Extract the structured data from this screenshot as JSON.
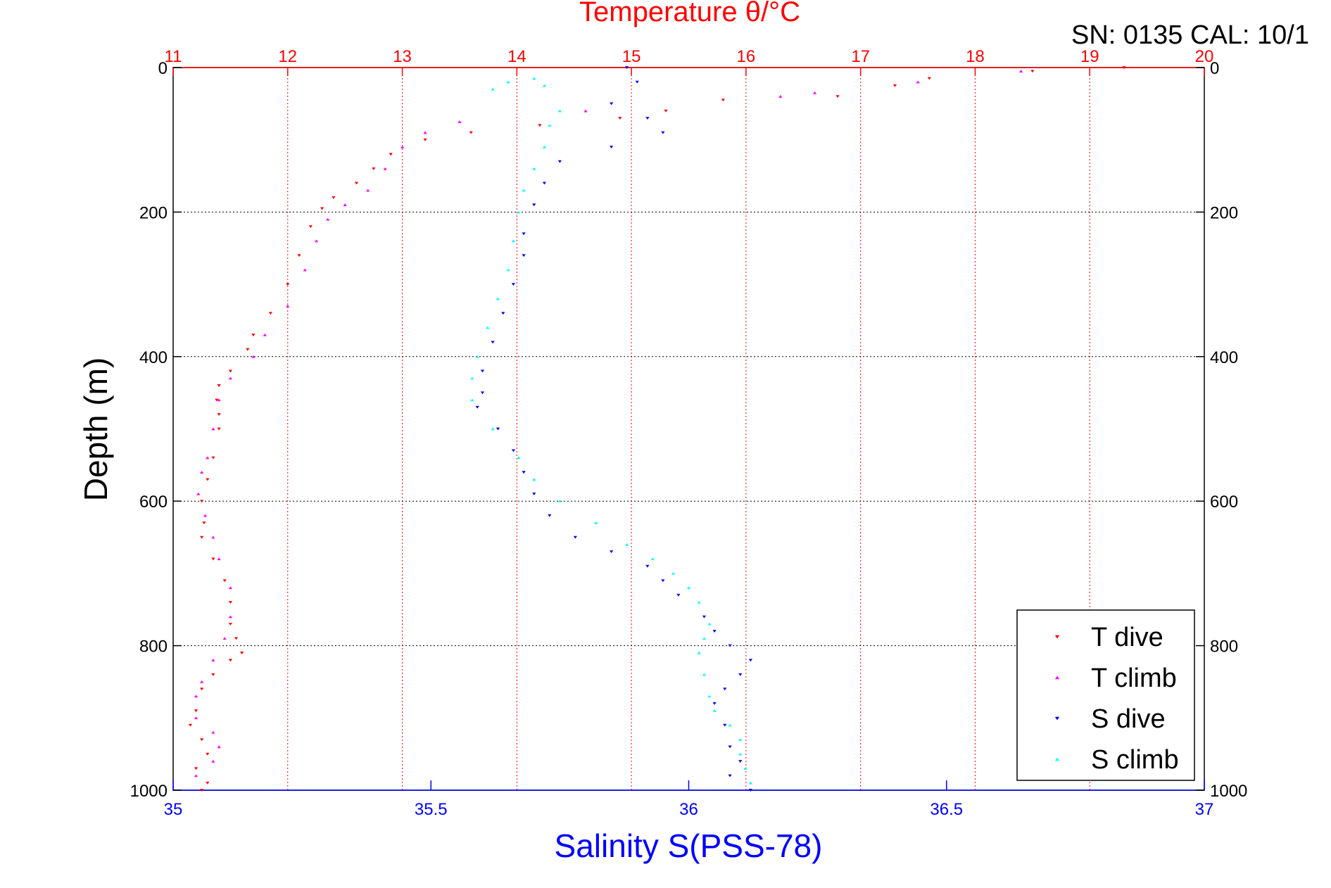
{
  "header": {
    "title": "Temperature θ/°C",
    "serial": "SN: 0135  CAL: 10/1"
  },
  "colors": {
    "t_dive": "#ff0000",
    "t_climb": "#ff00ff",
    "s_dive": "#0000ff",
    "s_climb": "#00ffff",
    "temp_axis": "#ff0000",
    "sal_axis": "#0000ff",
    "grid": "#000000"
  },
  "chart_data": {
    "type": "scatter",
    "title": "Temperature θ/°C",
    "xlabel": "Salinity S(PSS-78)",
    "x2label": "Temperature θ/°C",
    "ylabel": "Depth (m)",
    "x_sal_lim": [
      35,
      37
    ],
    "x_temp_lim": [
      11,
      20
    ],
    "ylim": [
      0,
      1000
    ],
    "y_reversed": true,
    "grid": true,
    "legend_position": "bottom-right",
    "x_sal_ticks": [
      "35",
      "35.5",
      "36",
      "36.5",
      "37"
    ],
    "x_temp_ticks": [
      "11",
      "12",
      "13",
      "14",
      "15",
      "16",
      "17",
      "18",
      "19",
      "20"
    ],
    "y_ticks": [
      "0",
      "200",
      "400",
      "600",
      "800",
      "1000"
    ],
    "legend": [
      "T dive",
      "T climb",
      "S dive",
      "S climb"
    ],
    "series": [
      {
        "name": "T dive",
        "axis": "temperature",
        "marker": "triangle-down",
        "points": [
          [
            19.3,
            0
          ],
          [
            18.5,
            5
          ],
          [
            17.6,
            15
          ],
          [
            17.3,
            25
          ],
          [
            16.8,
            40
          ],
          [
            15.8,
            45
          ],
          [
            15.3,
            60
          ],
          [
            14.9,
            70
          ],
          [
            14.2,
            80
          ],
          [
            13.6,
            90
          ],
          [
            13.2,
            100
          ],
          [
            12.9,
            120
          ],
          [
            12.75,
            140
          ],
          [
            12.6,
            160
          ],
          [
            12.4,
            180
          ],
          [
            12.3,
            195
          ],
          [
            12.2,
            220
          ],
          [
            12.1,
            260
          ],
          [
            12.0,
            300
          ],
          [
            11.85,
            340
          ],
          [
            11.7,
            370
          ],
          [
            11.65,
            390
          ],
          [
            11.5,
            420
          ],
          [
            11.4,
            440
          ],
          [
            11.38,
            460
          ],
          [
            11.4,
            480
          ],
          [
            11.4,
            500
          ],
          [
            11.35,
            540
          ],
          [
            11.3,
            570
          ],
          [
            11.25,
            600
          ],
          [
            11.27,
            630
          ],
          [
            11.25,
            650
          ],
          [
            11.35,
            680
          ],
          [
            11.45,
            710
          ],
          [
            11.5,
            740
          ],
          [
            11.5,
            770
          ],
          [
            11.55,
            790
          ],
          [
            11.6,
            810
          ],
          [
            11.5,
            820
          ],
          [
            11.35,
            840
          ],
          [
            11.25,
            860
          ],
          [
            11.2,
            890
          ],
          [
            11.15,
            910
          ],
          [
            11.25,
            930
          ],
          [
            11.3,
            950
          ],
          [
            11.2,
            970
          ],
          [
            11.3,
            990
          ],
          [
            11.25,
            1000
          ]
        ]
      },
      {
        "name": "T climb",
        "axis": "temperature",
        "marker": "triangle-up",
        "points": [
          [
            18.4,
            5
          ],
          [
            17.5,
            20
          ],
          [
            16.6,
            35
          ],
          [
            16.3,
            40
          ],
          [
            14.6,
            60
          ],
          [
            13.5,
            75
          ],
          [
            13.2,
            90
          ],
          [
            13.0,
            110
          ],
          [
            12.85,
            140
          ],
          [
            12.7,
            170
          ],
          [
            12.5,
            190
          ],
          [
            12.35,
            210
          ],
          [
            12.25,
            240
          ],
          [
            12.15,
            280
          ],
          [
            12.0,
            330
          ],
          [
            11.8,
            370
          ],
          [
            11.7,
            400
          ],
          [
            11.5,
            430
          ],
          [
            11.4,
            460
          ],
          [
            11.35,
            500
          ],
          [
            11.3,
            540
          ],
          [
            11.25,
            560
          ],
          [
            11.22,
            590
          ],
          [
            11.28,
            620
          ],
          [
            11.35,
            650
          ],
          [
            11.4,
            680
          ],
          [
            11.5,
            720
          ],
          [
            11.5,
            760
          ],
          [
            11.45,
            790
          ],
          [
            11.35,
            820
          ],
          [
            11.25,
            850
          ],
          [
            11.2,
            870
          ],
          [
            11.2,
            900
          ],
          [
            11.35,
            920
          ],
          [
            11.4,
            940
          ],
          [
            11.35,
            960
          ],
          [
            11.2,
            980
          ]
        ]
      },
      {
        "name": "S dive",
        "axis": "salinity",
        "marker": "triangle-down",
        "points": [
          [
            35.88,
            0
          ],
          [
            35.9,
            20
          ],
          [
            35.85,
            50
          ],
          [
            35.92,
            70
          ],
          [
            35.95,
            90
          ],
          [
            35.85,
            110
          ],
          [
            35.75,
            130
          ],
          [
            35.72,
            160
          ],
          [
            35.7,
            190
          ],
          [
            35.68,
            230
          ],
          [
            35.68,
            260
          ],
          [
            35.66,
            300
          ],
          [
            35.64,
            340
          ],
          [
            35.62,
            380
          ],
          [
            35.6,
            420
          ],
          [
            35.6,
            450
          ],
          [
            35.59,
            470
          ],
          [
            35.63,
            500
          ],
          [
            35.66,
            530
          ],
          [
            35.68,
            560
          ],
          [
            35.7,
            590
          ],
          [
            35.73,
            620
          ],
          [
            35.78,
            650
          ],
          [
            35.85,
            670
          ],
          [
            35.92,
            690
          ],
          [
            35.95,
            710
          ],
          [
            35.98,
            730
          ],
          [
            36.03,
            760
          ],
          [
            36.05,
            780
          ],
          [
            36.08,
            800
          ],
          [
            36.12,
            820
          ],
          [
            36.1,
            840
          ],
          [
            36.07,
            860
          ],
          [
            36.05,
            880
          ],
          [
            36.07,
            910
          ],
          [
            36.08,
            940
          ],
          [
            36.1,
            960
          ],
          [
            36.08,
            980
          ],
          [
            36.12,
            1000
          ]
        ]
      },
      {
        "name": "S climb",
        "axis": "salinity",
        "marker": "triangle-up",
        "points": [
          [
            35.62,
            30
          ],
          [
            35.65,
            20
          ],
          [
            35.7,
            15
          ],
          [
            35.72,
            25
          ],
          [
            35.75,
            60
          ],
          [
            35.73,
            80
          ],
          [
            35.72,
            110
          ],
          [
            35.7,
            140
          ],
          [
            35.68,
            170
          ],
          [
            35.67,
            200
          ],
          [
            35.66,
            240
          ],
          [
            35.65,
            280
          ],
          [
            35.63,
            320
          ],
          [
            35.61,
            360
          ],
          [
            35.59,
            400
          ],
          [
            35.58,
            430
          ],
          [
            35.58,
            460
          ],
          [
            35.62,
            500
          ],
          [
            35.67,
            540
          ],
          [
            35.7,
            570
          ],
          [
            35.75,
            600
          ],
          [
            35.82,
            630
          ],
          [
            35.88,
            660
          ],
          [
            35.93,
            680
          ],
          [
            35.97,
            700
          ],
          [
            36.0,
            720
          ],
          [
            36.02,
            740
          ],
          [
            36.04,
            770
          ],
          [
            36.03,
            790
          ],
          [
            36.02,
            810
          ],
          [
            36.03,
            840
          ],
          [
            36.04,
            870
          ],
          [
            36.05,
            890
          ],
          [
            36.08,
            910
          ],
          [
            36.1,
            930
          ],
          [
            36.1,
            950
          ],
          [
            36.11,
            970
          ],
          [
            36.12,
            990
          ]
        ]
      }
    ]
  }
}
